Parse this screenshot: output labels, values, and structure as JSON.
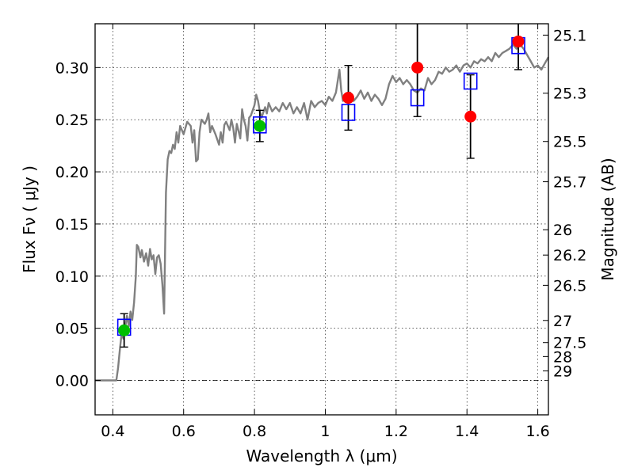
{
  "chart_data": {
    "type": "scatter",
    "title": "",
    "xlabel": "Wavelength  λ (μm)",
    "ylabel": "Flux  Fν  ( μJy )",
    "y2label": "Magnitude (AB)",
    "xlim": [
      0.35,
      1.63
    ],
    "ylim": [
      -0.033,
      0.342
    ],
    "grid": true,
    "x_ticks": [
      0.4,
      0.6,
      0.8,
      1.0,
      1.2,
      1.4,
      1.6
    ],
    "x_tick_labels": [
      "0.4",
      "0.6",
      "0.8",
      "1",
      "1.2",
      "1.4",
      "1.6"
    ],
    "y_ticks": [
      0.0,
      0.05,
      0.1,
      0.15,
      0.2,
      0.25,
      0.3
    ],
    "y_tick_labels": [
      "0.00",
      "0.05",
      "0.10",
      "0.15",
      "0.20",
      "0.25",
      "0.30"
    ],
    "mag_ticks": [
      {
        "label": "25.1",
        "flux": 0.3311
      },
      {
        "label": "25.3",
        "flux": 0.2754
      },
      {
        "label": "25.5",
        "flux": 0.2291
      },
      {
        "label": "25.7",
        "flux": 0.1905
      },
      {
        "label": "26",
        "flux": 0.1445
      },
      {
        "label": "26.2",
        "flux": 0.1202
      },
      {
        "label": "26.5",
        "flux": 0.0912
      },
      {
        "label": "27",
        "flux": 0.0575
      },
      {
        "label": "27.5",
        "flux": 0.0363
      },
      {
        "label": "28",
        "flux": 0.0229
      },
      {
        "label": "29",
        "flux": 0.0091
      }
    ],
    "colors": {
      "model": "#808080",
      "box": "#0000ff",
      "red": "#ff0000",
      "green": "#00c000",
      "errorbar": "#000000"
    },
    "series": [
      {
        "kind": "line",
        "color": "#808080",
        "points": [
          [
            0.35,
            0.0
          ],
          [
            0.41,
            0.0
          ],
          [
            0.415,
            0.012
          ],
          [
            0.42,
            0.03
          ],
          [
            0.425,
            0.045
          ],
          [
            0.43,
            0.04
          ],
          [
            0.44,
            0.062
          ],
          [
            0.445,
            0.052
          ],
          [
            0.45,
            0.066
          ],
          [
            0.455,
            0.058
          ],
          [
            0.46,
            0.075
          ],
          [
            0.465,
            0.1
          ],
          [
            0.468,
            0.13
          ],
          [
            0.472,
            0.128
          ],
          [
            0.478,
            0.118
          ],
          [
            0.482,
            0.125
          ],
          [
            0.488,
            0.114
          ],
          [
            0.494,
            0.122
          ],
          [
            0.5,
            0.11
          ],
          [
            0.505,
            0.126
          ],
          [
            0.51,
            0.116
          ],
          [
            0.515,
            0.12
          ],
          [
            0.52,
            0.102
          ],
          [
            0.525,
            0.118
          ],
          [
            0.53,
            0.12
          ],
          [
            0.535,
            0.112
          ],
          [
            0.54,
            0.092
          ],
          [
            0.545,
            0.064
          ],
          [
            0.55,
            0.18
          ],
          [
            0.555,
            0.212
          ],
          [
            0.56,
            0.22
          ],
          [
            0.565,
            0.218
          ],
          [
            0.57,
            0.226
          ],
          [
            0.575,
            0.222
          ],
          [
            0.58,
            0.238
          ],
          [
            0.585,
            0.228
          ],
          [
            0.59,
            0.244
          ],
          [
            0.6,
            0.236
          ],
          [
            0.61,
            0.248
          ],
          [
            0.62,
            0.244
          ],
          [
            0.625,
            0.228
          ],
          [
            0.63,
            0.24
          ],
          [
            0.635,
            0.21
          ],
          [
            0.64,
            0.212
          ],
          [
            0.645,
            0.238
          ],
          [
            0.65,
            0.25
          ],
          [
            0.66,
            0.246
          ],
          [
            0.665,
            0.25
          ],
          [
            0.67,
            0.256
          ],
          [
            0.675,
            0.238
          ],
          [
            0.68,
            0.244
          ],
          [
            0.69,
            0.236
          ],
          [
            0.7,
            0.226
          ],
          [
            0.705,
            0.238
          ],
          [
            0.71,
            0.228
          ],
          [
            0.715,
            0.245
          ],
          [
            0.72,
            0.248
          ],
          [
            0.73,
            0.24
          ],
          [
            0.735,
            0.25
          ],
          [
            0.74,
            0.242
          ],
          [
            0.745,
            0.228
          ],
          [
            0.75,
            0.246
          ],
          [
            0.76,
            0.232
          ],
          [
            0.765,
            0.26
          ],
          [
            0.77,
            0.25
          ],
          [
            0.775,
            0.244
          ],
          [
            0.78,
            0.23
          ],
          [
            0.785,
            0.252
          ],
          [
            0.79,
            0.254
          ],
          [
            0.8,
            0.264
          ],
          [
            0.805,
            0.274
          ],
          [
            0.81,
            0.268
          ],
          [
            0.815,
            0.258
          ],
          [
            0.82,
            0.252
          ],
          [
            0.83,
            0.262
          ],
          [
            0.835,
            0.256
          ],
          [
            0.84,
            0.266
          ],
          [
            0.85,
            0.258
          ],
          [
            0.86,
            0.262
          ],
          [
            0.87,
            0.258
          ],
          [
            0.88,
            0.266
          ],
          [
            0.89,
            0.26
          ],
          [
            0.9,
            0.266
          ],
          [
            0.91,
            0.256
          ],
          [
            0.92,
            0.262
          ],
          [
            0.93,
            0.256
          ],
          [
            0.94,
            0.266
          ],
          [
            0.95,
            0.25
          ],
          [
            0.96,
            0.268
          ],
          [
            0.97,
            0.262
          ],
          [
            0.98,
            0.266
          ],
          [
            0.99,
            0.268
          ],
          [
            1.0,
            0.264
          ],
          [
            1.01,
            0.272
          ],
          [
            1.02,
            0.268
          ],
          [
            1.03,
            0.276
          ],
          [
            1.04,
            0.298
          ],
          [
            1.045,
            0.278
          ],
          [
            1.05,
            0.268
          ],
          [
            1.06,
            0.272
          ],
          [
            1.07,
            0.276
          ],
          [
            1.08,
            0.268
          ],
          [
            1.09,
            0.272
          ],
          [
            1.1,
            0.278
          ],
          [
            1.11,
            0.27
          ],
          [
            1.12,
            0.276
          ],
          [
            1.13,
            0.268
          ],
          [
            1.14,
            0.274
          ],
          [
            1.15,
            0.27
          ],
          [
            1.16,
            0.264
          ],
          [
            1.17,
            0.27
          ],
          [
            1.18,
            0.284
          ],
          [
            1.19,
            0.292
          ],
          [
            1.2,
            0.286
          ],
          [
            1.21,
            0.29
          ],
          [
            1.22,
            0.284
          ],
          [
            1.23,
            0.288
          ],
          [
            1.24,
            0.284
          ],
          [
            1.25,
            0.278
          ],
          [
            1.26,
            0.276
          ],
          [
            1.27,
            0.28
          ],
          [
            1.28,
            0.278
          ],
          [
            1.29,
            0.29
          ],
          [
            1.3,
            0.284
          ],
          [
            1.31,
            0.288
          ],
          [
            1.32,
            0.296
          ],
          [
            1.33,
            0.294
          ],
          [
            1.34,
            0.3
          ],
          [
            1.35,
            0.296
          ],
          [
            1.36,
            0.298
          ],
          [
            1.37,
            0.302
          ],
          [
            1.38,
            0.296
          ],
          [
            1.39,
            0.302
          ],
          [
            1.4,
            0.304
          ],
          [
            1.41,
            0.3
          ],
          [
            1.42,
            0.306
          ],
          [
            1.43,
            0.304
          ],
          [
            1.44,
            0.308
          ],
          [
            1.45,
            0.306
          ],
          [
            1.46,
            0.31
          ],
          [
            1.47,
            0.306
          ],
          [
            1.48,
            0.314
          ],
          [
            1.49,
            0.31
          ],
          [
            1.5,
            0.314
          ],
          [
            1.51,
            0.316
          ],
          [
            1.52,
            0.318
          ],
          [
            1.53,
            0.322
          ],
          [
            1.54,
            0.318
          ],
          [
            1.55,
            0.322
          ],
          [
            1.56,
            0.318
          ],
          [
            1.57,
            0.312
          ],
          [
            1.58,
            0.306
          ],
          [
            1.59,
            0.3
          ],
          [
            1.6,
            0.302
          ],
          [
            1.61,
            0.298
          ],
          [
            1.62,
            0.304
          ],
          [
            1.63,
            0.31
          ]
        ]
      },
      {
        "kind": "box",
        "color": "#0000ff",
        "points": [
          [
            0.432,
            0.051
          ],
          [
            0.815,
            0.245
          ],
          [
            1.065,
            0.257
          ],
          [
            1.26,
            0.271
          ],
          [
            1.41,
            0.287
          ],
          [
            1.545,
            0.321
          ]
        ]
      },
      {
        "kind": "marker",
        "color": "#00c000",
        "points": [
          [
            0.432,
            0.048,
            0.016
          ],
          [
            0.815,
            0.244,
            0.015
          ]
        ]
      },
      {
        "kind": "marker",
        "color": "#ff0000",
        "points": [
          [
            1.065,
            0.271,
            0.031
          ],
          [
            1.26,
            0.3,
            0.047
          ],
          [
            1.41,
            0.253,
            0.04
          ],
          [
            1.545,
            0.325,
            0.027
          ]
        ]
      }
    ]
  }
}
